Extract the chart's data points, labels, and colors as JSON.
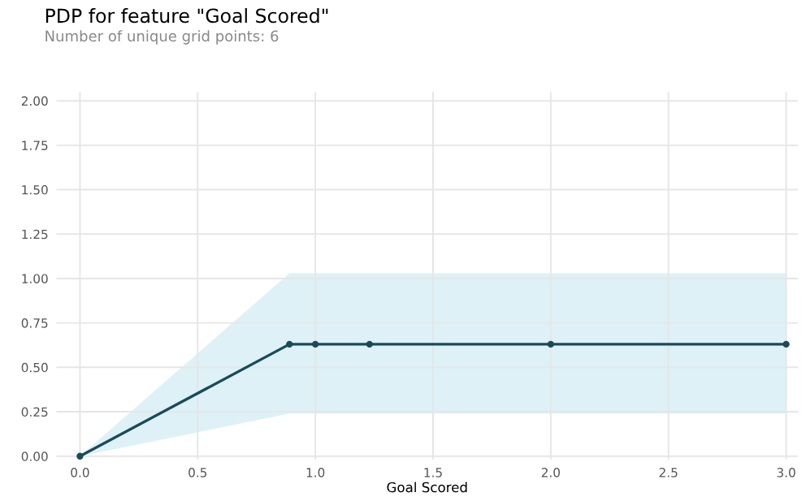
{
  "chart_data": {
    "type": "line",
    "title": "PDP for feature \"Goal Scored\"",
    "subtitle": "Number of unique grid points: 6",
    "xlabel": "Goal Scored",
    "x": [
      0.0,
      0.89,
      1.0,
      1.23,
      2.0,
      3.0
    ],
    "series": [
      {
        "color": "#1a4a5a",
        "values": [
          0.0,
          0.63,
          0.63,
          0.63,
          0.63,
          0.63
        ],
        "lower": [
          0.0,
          0.24,
          0.24,
          0.24,
          0.24,
          0.24
        ],
        "upper": [
          0.0,
          1.03,
          1.03,
          1.03,
          1.03,
          1.03
        ]
      }
    ],
    "xlim": [
      -0.1,
      3.05
    ],
    "ylim": [
      -0.02,
      2.05
    ],
    "xticks": [
      {
        "value": 0,
        "label": "0.0"
      },
      0.5,
      {
        "value": 1,
        "label": "1.0"
      },
      1.5,
      {
        "value": 2,
        "label": "2.0"
      },
      2.5,
      {
        "value": 3,
        "label": "3.0"
      }
    ],
    "yticks": [
      {
        "value": 0,
        "label": "0.00"
      },
      0.25,
      {
        "value": 0.5,
        "label": "0.50"
      },
      0.75,
      {
        "value": 1,
        "label": "1.00"
      },
      1.25,
      {
        "value": 1.5,
        "label": "1.50"
      },
      1.75,
      {
        "value": 2,
        "label": "2.00"
      }
    ],
    "grid": true,
    "marker": "circle",
    "line_style": "solid"
  }
}
